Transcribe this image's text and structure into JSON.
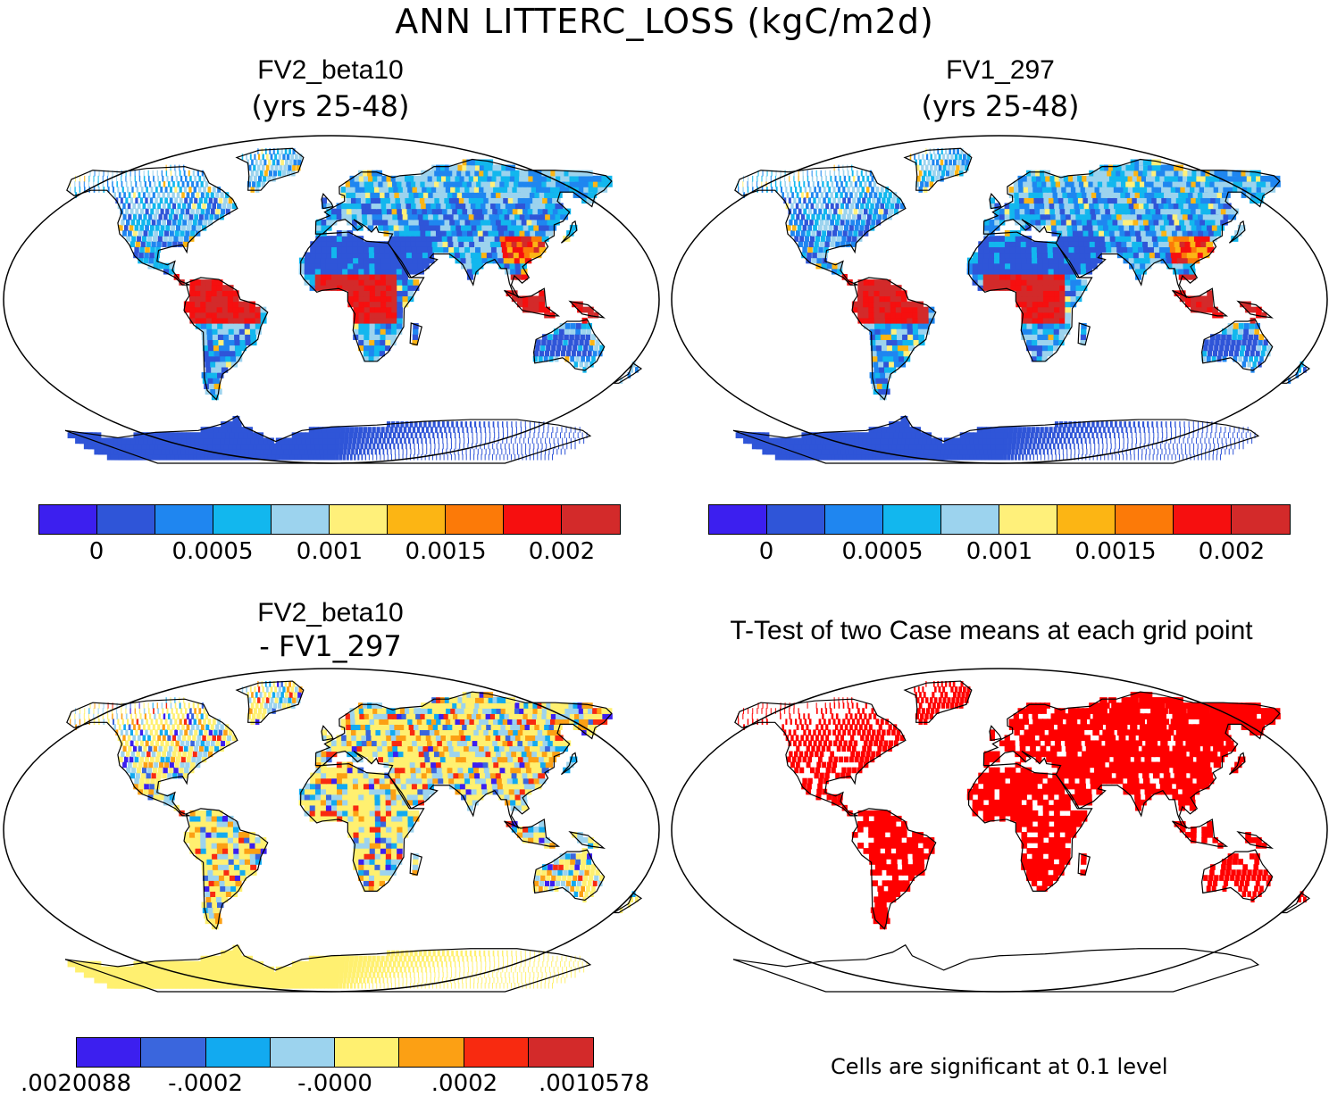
{
  "title": "ANN LITTERC_LOSS (kgC/m2d)",
  "panels": [
    {
      "title": "FV2_beta10",
      "subtitle": "(yrs 25-48)"
    },
    {
      "title": "FV1_297",
      "subtitle": "(yrs 25-48)"
    },
    {
      "title": "FV2_beta10",
      "subtitle": "- FV1_297"
    },
    {
      "title": "T-Test of two Case means at each grid point",
      "subtitle": ""
    }
  ],
  "colorbar_top": {
    "colors": [
      "#3c1fef",
      "#2f55d8",
      "#1f86f0",
      "#12b7ee",
      "#9cd3ee",
      "#fff07a",
      "#fcb514",
      "#fc7a08",
      "#f60f0f",
      "#d32a2a"
    ],
    "ticks": [
      "0",
      "0.0005",
      "0.001",
      "0.0015",
      "0.002"
    ]
  },
  "colorbar_diff": {
    "colors": [
      "#3c1fef",
      "#3a66dd",
      "#12aaf0",
      "#9cd3ee",
      "#fff070",
      "#fca014",
      "#f82a10",
      "#d32a2a"
    ],
    "ticks": [
      ".0020088",
      "-.0002",
      "-.0000",
      ".0002",
      ".0010578"
    ]
  },
  "ttest_color": "#ff0000",
  "note": "Cells are significant at 0.1 level"
}
